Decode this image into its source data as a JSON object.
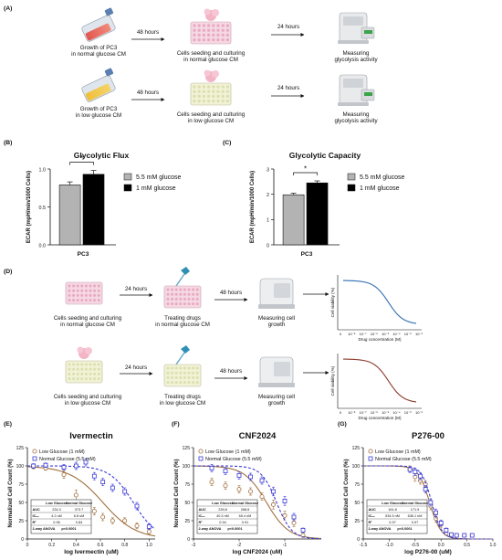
{
  "panel_labels": {
    "A": "(A)",
    "B": "(B)",
    "C": "(C)",
    "D": "(D)",
    "E": "(E)",
    "F": "(F)",
    "G": "(G)"
  },
  "panel_a": {
    "row1": {
      "step1": [
        "Growth of PC3",
        "in normal glucose CM"
      ],
      "arrow1": "48 hours",
      "step2": [
        "Cells seeding and culturing",
        "in normal glucose CM"
      ],
      "arrow2": "24 hours",
      "step3": [
        "Measuring",
        "glycolysis activity"
      ]
    },
    "row2": {
      "step1": [
        "Growth of PC3",
        "in low glucose CM"
      ],
      "arrow1": "48 hours",
      "step2": [
        "Cells seeding and culturing",
        "in low glucose CM"
      ],
      "arrow2": "24 hours",
      "step3": [
        "Measuring",
        "glycolysis activity"
      ]
    }
  },
  "panel_d": {
    "row1": {
      "step1": [
        "Cells seeding and culturing",
        "in normal glucose CM"
      ],
      "arrow1": "24 hours",
      "step2": [
        "Treating drugs",
        "in  normal glucose CM"
      ],
      "arrow2": "48 hours",
      "step3": [
        "Measuring cell",
        "growth"
      ]
    },
    "row2": {
      "step1": [
        "Cells seeding and culturing",
        "in low glucose CM"
      ],
      "arrow1": "24 hours",
      "step2": [
        "Treating drugs",
        "in low glucose CM"
      ],
      "arrow2": "48 hours",
      "step3": [
        "Measuring cell",
        "growth"
      ]
    },
    "mini_chart": {
      "ylabel": "Cell viability (%)",
      "xlabel": "Drug concentration (M)",
      "ticks": [
        "0",
        "10⁻⁸",
        "10⁻⁷",
        "10⁻⁶",
        "10⁻⁵",
        "10⁻⁴",
        "10⁻³",
        "10⁻²"
      ],
      "colors": [
        "#2f6fb0",
        "#8b3a2a"
      ]
    }
  },
  "chart_data": [
    {
      "id": "B",
      "type": "bar",
      "title": "Glycolytic Flux",
      "categories": [
        "5.5 mM glucose",
        "1 mM glucose"
      ],
      "values": [
        0.79,
        0.93
      ],
      "errors": [
        0.04,
        0.05
      ],
      "colors": [
        "#b3b3b3",
        "#000000"
      ],
      "ylabel": "ECAR (mpH/min/1000 Cells)",
      "xlabel": "PC3",
      "ylim": [
        0,
        1.0
      ],
      "yticks": [
        0.0,
        0.5,
        1.0
      ],
      "ytick_labels": [
        "0.0",
        "0.5",
        "1.0"
      ],
      "significance": "*"
    },
    {
      "id": "C",
      "type": "bar",
      "title": "Glycolytic Capacity",
      "categories": [
        "5.5 mM glucose",
        "1 mM glucose"
      ],
      "values": [
        1.98,
        2.45
      ],
      "errors": [
        0.06,
        0.08
      ],
      "colors": [
        "#b3b3b3",
        "#000000"
      ],
      "ylabel": "ECAR (mpH/min/1000 Cells)",
      "xlabel": "PC3",
      "ylim": [
        0,
        3
      ],
      "yticks": [
        0,
        1,
        2,
        3
      ],
      "ytick_labels": [
        "0",
        "1",
        "2",
        "3"
      ],
      "significance": "*"
    },
    {
      "id": "E",
      "type": "scatter",
      "title": "Ivermectin",
      "xlabel": "log Ivermectin (uM)",
      "ylabel": "Normalized Cell Count (%)",
      "xlim": [
        0,
        1.05
      ],
      "ylim": [
        0,
        125
      ],
      "xticks": [
        0,
        0.2,
        0.4,
        0.6,
        0.8,
        1.0
      ],
      "xtick_labels": [
        "0",
        "0.2",
        "0.4",
        "0.6",
        "0.8",
        "1.0"
      ],
      "yticks": [
        0,
        25,
        50,
        75,
        100,
        125
      ],
      "ytick_labels": [
        "0",
        "25",
        "50",
        "75",
        "100",
        "125"
      ],
      "series": [
        {
          "name": "Low Glucose (1 mM)",
          "color": "#a0703f",
          "marker": "circle",
          "fit_ic50": 0.62,
          "fit_hill": 3.2,
          "x": [
            0.05,
            0.15,
            0.3,
            0.4,
            0.48,
            0.55,
            0.62,
            0.7,
            0.8,
            0.9,
            1.0
          ],
          "y": [
            99,
            97,
            88,
            60,
            40,
            38,
            30,
            25,
            25,
            18,
            10
          ],
          "err": [
            3,
            3,
            5,
            7,
            6,
            5,
            5,
            4,
            4,
            4,
            3
          ]
        },
        {
          "name": "Normal Glucose (5.5 mM)",
          "color": "#3b3bd6",
          "marker": "square",
          "fit_ic50": 0.87,
          "fit_hill": 4.5,
          "x": [
            0.05,
            0.15,
            0.3,
            0.4,
            0.48,
            0.55,
            0.62,
            0.7,
            0.8,
            0.9,
            1.0
          ],
          "y": [
            100,
            101,
            98,
            100,
            105,
            86,
            78,
            70,
            65,
            45,
            17
          ],
          "err": [
            3,
            3,
            4,
            5,
            5,
            5,
            5,
            5,
            5,
            5,
            4
          ]
        }
      ],
      "stats": {
        "header": [
          "",
          "Low Glucose",
          "Normal Glucose"
        ],
        "rows": [
          [
            "AUC",
            "234.3",
            "373.7"
          ],
          [
            "IC₅₀",
            "4.2 uM",
            "6.8 uM"
          ],
          [
            "R²",
            "0.96",
            "0.84"
          ],
          [
            "2-way ANOVA",
            "p<0.0001",
            ""
          ]
        ]
      }
    },
    {
      "id": "F",
      "type": "scatter",
      "title": "CNF2024",
      "xlabel": "log CNF2024 (uM)",
      "ylabel": "Normalized Cell Count (%)",
      "xlim": [
        -3,
        -0.2
      ],
      "ylim": [
        0,
        125
      ],
      "xticks": [
        -3,
        -2,
        -1
      ],
      "xtick_labels": [
        "-3",
        "-2",
        "-1"
      ],
      "yticks": [
        0,
        25,
        50,
        75,
        100,
        125
      ],
      "ytick_labels": [
        "0",
        "25",
        "50",
        "75",
        "100",
        "125"
      ],
      "series": [
        {
          "name": "Low Glucose (1 mM)",
          "color": "#a0703f",
          "marker": "circle",
          "fit_ic50": -1.4,
          "fit_hill": 1.8,
          "x": [
            -2.6,
            -2.3,
            -2.0,
            -1.75,
            -1.5,
            -1.25,
            -1.0,
            -0.8,
            -0.6
          ],
          "y": [
            78,
            73,
            68,
            65,
            58,
            47,
            32,
            22,
            5
          ],
          "err": [
            5,
            5,
            5,
            5,
            5,
            6,
            6,
            5,
            3
          ]
        },
        {
          "name": "Normal Glucose (5.5 mM)",
          "color": "#3b3bd6",
          "marker": "square",
          "fit_ic50": -1.18,
          "fit_hill": 2.6,
          "x": [
            -2.6,
            -2.3,
            -2.0,
            -1.75,
            -1.5,
            -1.25,
            -1.0,
            -0.8,
            -0.6
          ],
          "y": [
            97,
            93,
            87,
            85,
            80,
            65,
            52,
            30,
            12
          ],
          "err": [
            5,
            5,
            5,
            5,
            5,
            6,
            6,
            5,
            3
          ]
        }
      ],
      "stats": {
        "header": [
          "",
          "Low Glucose",
          "Normal Glucose"
        ],
        "rows": [
          [
            "AUC",
            "239.8",
            "268.6"
          ],
          [
            "IC₅₀",
            "40.3 nM",
            "65.4 nM"
          ],
          [
            "R²",
            "0.94",
            "0.91"
          ],
          [
            "2-way ANOVA",
            "p<0.0001",
            ""
          ]
        ]
      }
    },
    {
      "id": "G",
      "type": "scatter",
      "title": "P276-00",
      "xlabel": "log P276-00 (uM)",
      "ylabel": "Normalized Cell Count (%)",
      "xlim": [
        -1.5,
        1.0
      ],
      "ylim": [
        0,
        125
      ],
      "xticks": [
        -1.5,
        -1.0,
        -0.5,
        0.0,
        0.5,
        1.0
      ],
      "xtick_labels": [
        "-1.5",
        "-1.0",
        "-0.5",
        "0.0",
        "0.5",
        "1.0"
      ],
      "yticks": [
        0,
        25,
        50,
        75,
        100,
        125
      ],
      "ytick_labels": [
        "0",
        "25",
        "50",
        "75",
        "100",
        "125"
      ],
      "series": [
        {
          "name": "Low Glucose (1 mM)",
          "color": "#a0703f",
          "marker": "circle",
          "fit_ic50": -0.22,
          "fit_hill": 4.0,
          "x": [
            -0.6,
            -0.5,
            -0.4,
            -0.3,
            -0.2,
            -0.1,
            0.0,
            0.1,
            0.2,
            0.3,
            0.45,
            0.6
          ],
          "y": [
            96,
            85,
            80,
            75,
            45,
            28,
            20,
            8,
            6,
            5,
            5,
            5
          ],
          "err": [
            4,
            6,
            5,
            5,
            5,
            5,
            4,
            3,
            2,
            2,
            2,
            2
          ]
        },
        {
          "name": "Normal Glucose (5.5 mM)",
          "color": "#3b3bd6",
          "marker": "square",
          "fit_ic50": -0.18,
          "fit_hill": 4.5,
          "x": [
            -0.6,
            -0.5,
            -0.4,
            -0.3,
            -0.2,
            -0.1,
            0.0,
            0.1,
            0.2,
            0.3,
            0.45,
            0.6
          ],
          "y": [
            95,
            92,
            86,
            68,
            50,
            36,
            22,
            12,
            6,
            5,
            5,
            5
          ],
          "err": [
            4,
            5,
            5,
            5,
            5,
            5,
            4,
            3,
            2,
            2,
            2,
            2
          ]
        }
      ],
      "stats": {
        "header": [
          "",
          "Low Glucose",
          "Normal Glucose"
        ],
        "rows": [
          [
            "AUC",
            "161.8",
            "171.9"
          ],
          [
            "IC₅₀",
            "534.5 nM",
            "636.1 nM"
          ],
          [
            "R²",
            "0.97",
            "0.97"
          ],
          [
            "2-way ANOVA",
            "p<0.0001",
            ""
          ]
        ]
      }
    }
  ]
}
